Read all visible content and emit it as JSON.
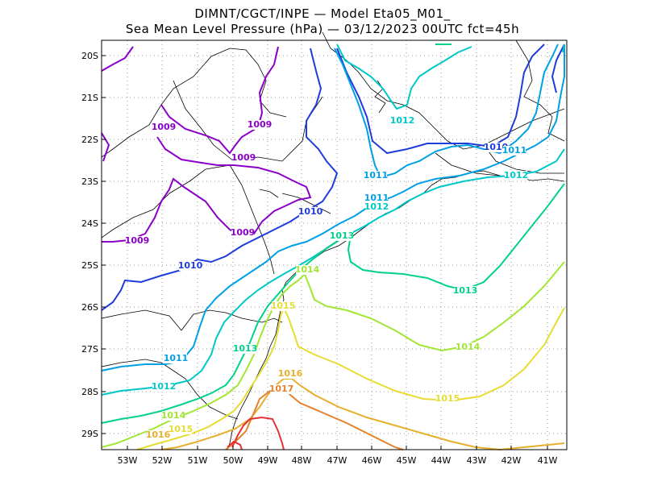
{
  "title": {
    "line1": "DIMNT/CGCT/INPE —  Model Eta05_M01_",
    "line2": "Sea Mean Level Pressure (hPa) — 03/12/2023 00UTC fct=45h"
  },
  "map": {
    "lon_ticks": [
      "53W",
      "52W",
      "51W",
      "50W",
      "49W",
      "48W",
      "47W",
      "46W",
      "45W",
      "44W",
      "43W",
      "42W",
      "41W"
    ],
    "lat_ticks": [
      "20S",
      "21S",
      "22S",
      "23S",
      "24S",
      "25S",
      "26S",
      "27S",
      "28S",
      "29S"
    ],
    "grid": true,
    "contour_colors": {
      "1009": "#8a00c8",
      "1010": "#1e3cdc",
      "1011": "#00a0e6",
      "1012": "#00c8c8",
      "1013": "#00d28c",
      "1014": "#a0e632",
      "1015": "#e6dc32",
      "1016": "#e6af2d",
      "1017": "#e6822d",
      "1018": "#e63232"
    },
    "contour_labels": [
      {
        "text": "1009",
        "level": "1009"
      },
      {
        "text": "1009",
        "level": "1009"
      },
      {
        "text": "1009",
        "level": "1009"
      },
      {
        "text": "1009",
        "level": "1009"
      },
      {
        "text": "1009",
        "level": "1009"
      },
      {
        "text": "1010",
        "level": "1010"
      },
      {
        "text": "1010",
        "level": "1010"
      },
      {
        "text": "1010",
        "level": "1010"
      },
      {
        "text": "1011",
        "level": "1011"
      },
      {
        "text": "1011",
        "level": "1011"
      },
      {
        "text": "1011",
        "level": "1011"
      },
      {
        "text": "1011",
        "level": "1011"
      },
      {
        "text": "1012",
        "level": "1012"
      },
      {
        "text": "1012",
        "level": "1012"
      },
      {
        "text": "1012",
        "level": "1012"
      },
      {
        "text": "1012",
        "level": "1012"
      },
      {
        "text": "1013",
        "level": "1013"
      },
      {
        "text": "1013",
        "level": "1013"
      },
      {
        "text": "1013",
        "level": "1013"
      },
      {
        "text": "1014",
        "level": "1014"
      },
      {
        "text": "1014",
        "level": "1014"
      },
      {
        "text": "1014",
        "level": "1014"
      },
      {
        "text": "1015",
        "level": "1015"
      },
      {
        "text": "1015",
        "level": "1015"
      },
      {
        "text": "1015",
        "level": "1015"
      },
      {
        "text": "1016",
        "level": "1016"
      },
      {
        "text": "1016",
        "level": "1016"
      },
      {
        "text": "1017",
        "level": "1017"
      }
    ]
  }
}
